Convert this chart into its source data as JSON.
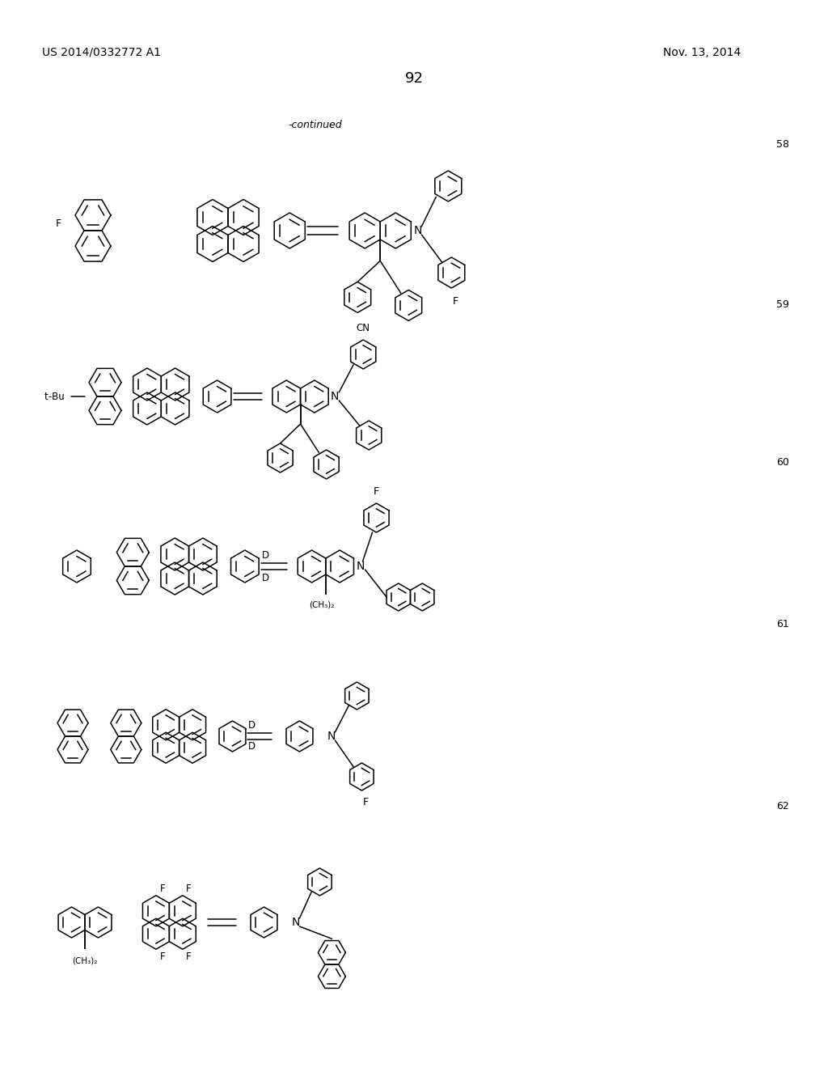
{
  "page_number": "92",
  "patent_number": "US 2014/0332772 A1",
  "patent_date": "Nov. 13, 2014",
  "continued_label": "-continued",
  "background_color": "#ffffff",
  "text_color": "#000000",
  "compound_numbers": [
    "58",
    "59",
    "60",
    "61",
    "62"
  ],
  "figure_width": 10.24,
  "figure_height": 13.2,
  "dpi": 100
}
